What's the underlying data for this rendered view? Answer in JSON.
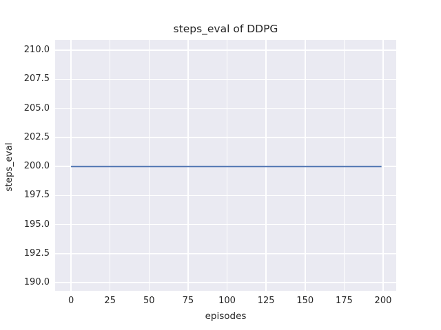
{
  "chart_data": {
    "type": "line",
    "title": "steps_eval of DDPG",
    "xlabel": "episodes",
    "ylabel": "steps_eval",
    "style": "seaborn-darkgrid",
    "grid": true,
    "legend": false,
    "xlim": [
      -10.2,
      208.4
    ],
    "ylim": [
      189.3,
      210.9
    ],
    "xticks": [
      0,
      25,
      50,
      75,
      100,
      125,
      150,
      175,
      200
    ],
    "xtick_labels": [
      "0",
      "25",
      "50",
      "75",
      "100",
      "125",
      "150",
      "175",
      "200"
    ],
    "yticks": [
      190.0,
      192.5,
      195.0,
      197.5,
      200.0,
      202.5,
      205.0,
      207.5,
      210.0
    ],
    "ytick_labels": [
      "190.0",
      "192.5",
      "195.0",
      "197.5",
      "200.0",
      "202.5",
      "205.0",
      "207.5",
      "210.0"
    ],
    "series": [
      {
        "name": "DDPG",
        "color": "#4c72b0",
        "x": [
          0,
          199
        ],
        "y": [
          200,
          200
        ],
        "description": "constant line at steps_eval = 200 from episode 0 to 199"
      }
    ],
    "colors": {
      "figure_background": "#ffffff",
      "axes_background": "#eaeaf2",
      "grid": "#ffffff",
      "text": "#262626",
      "line": "#4c72b0"
    }
  }
}
